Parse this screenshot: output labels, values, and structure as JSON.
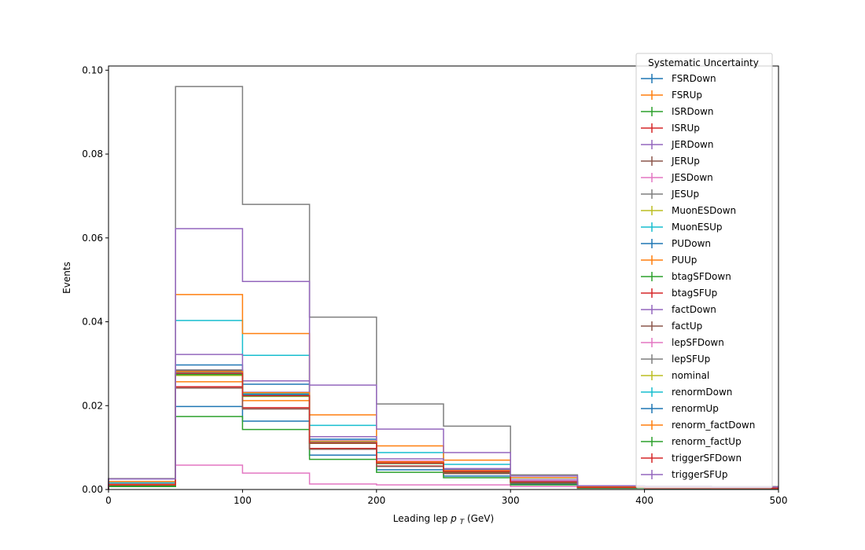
{
  "chart_data": {
    "type": "step-histogram",
    "xlabel": "Leading lep",
    "xlabel_math": "p",
    "xlabel_sub": "T",
    "xlabel_unit": "(GeV)",
    "ylabel": "Events",
    "xlim": [
      0,
      500
    ],
    "ylim": [
      0,
      0.101
    ],
    "xticks": [
      0,
      100,
      200,
      300,
      400,
      500
    ],
    "xtick_labels": [
      "0",
      "100",
      "200",
      "300",
      "400",
      "500"
    ],
    "yticks": [
      0,
      0.02,
      0.04,
      0.06,
      0.08,
      0.1
    ],
    "ytick_labels": [
      "0.00",
      "0.02",
      "0.04",
      "0.06",
      "0.08",
      "0.10"
    ],
    "bin_edges": [
      0,
      50,
      100,
      150,
      200,
      250,
      300,
      350,
      400,
      450,
      500
    ],
    "legend_title": "Systematic Uncertainty",
    "legend_position": "upper right",
    "series": [
      {
        "name": "FSRDown",
        "color": "#1f77b4",
        "values": [
          0.001,
          0.0297,
          0.0251,
          0.012,
          0.0068,
          0.0048,
          0.0018,
          0.0006,
          0.0004,
          0.0003
        ]
      },
      {
        "name": "FSRUp",
        "color": "#ff7f0e",
        "values": [
          0.0012,
          0.0257,
          0.0212,
          0.011,
          0.0063,
          0.0043,
          0.0017,
          0.0005,
          0.0003,
          0.0003
        ]
      },
      {
        "name": "ISRDown",
        "color": "#2ca02c",
        "values": [
          0.0009,
          0.0275,
          0.0225,
          0.0112,
          0.0062,
          0.0042,
          0.0017,
          0.0005,
          0.0003,
          0.0003
        ]
      },
      {
        "name": "ISRUp",
        "color": "#d62728",
        "values": [
          0.0011,
          0.028,
          0.023,
          0.0114,
          0.0064,
          0.0044,
          0.0018,
          0.0006,
          0.0004,
          0.0003
        ]
      },
      {
        "name": "JERDown",
        "color": "#9467bd",
        "values": [
          0.0012,
          0.0285,
          0.0232,
          0.0116,
          0.0066,
          0.0045,
          0.0018,
          0.0006,
          0.0004,
          0.0003
        ]
      },
      {
        "name": "JERUp",
        "color": "#8c564b",
        "values": [
          0.0012,
          0.0283,
          0.0228,
          0.0114,
          0.0065,
          0.0045,
          0.0018,
          0.0006,
          0.0004,
          0.0003
        ]
      },
      {
        "name": "JESDown",
        "color": "#e377c2",
        "values": [
          0.0009,
          0.0058,
          0.0039,
          0.0013,
          0.0011,
          0.0011,
          0.0007,
          0.0004,
          0.0003,
          0.0003
        ]
      },
      {
        "name": "JESUp",
        "color": "#7f7f7f",
        "values": [
          0.0014,
          0.0285,
          0.0229,
          0.0113,
          0.0065,
          0.0046,
          0.0019,
          0.0006,
          0.0004,
          0.0003
        ]
      },
      {
        "name": "MuonESDown",
        "color": "#bcbd22",
        "values": [
          0.0013,
          0.0272,
          0.0222,
          0.011,
          0.0063,
          0.0043,
          0.0018,
          0.0005,
          0.0003,
          0.0003
        ]
      },
      {
        "name": "MuonESUp",
        "color": "#17becf",
        "values": [
          0.0016,
          0.0403,
          0.032,
          0.0153,
          0.0088,
          0.006,
          0.0024,
          0.0007,
          0.0004,
          0.0004
        ]
      },
      {
        "name": "PUDown",
        "color": "#1f77b4",
        "values": [
          0.0008,
          0.0198,
          0.0163,
          0.0082,
          0.0047,
          0.0032,
          0.0013,
          0.0004,
          0.0002,
          0.0002
        ]
      },
      {
        "name": "PUUp",
        "color": "#ff7f0e",
        "values": [
          0.0019,
          0.0465,
          0.0372,
          0.0178,
          0.0104,
          0.007,
          0.0028,
          0.0008,
          0.0005,
          0.0004
        ]
      },
      {
        "name": "btagSFDown",
        "color": "#2ca02c",
        "values": [
          0.0007,
          0.0174,
          0.0143,
          0.0072,
          0.0041,
          0.0028,
          0.0011,
          0.0003,
          0.0002,
          0.0002
        ]
      },
      {
        "name": "btagSFUp",
        "color": "#d62728",
        "values": [
          0.001,
          0.0245,
          0.0195,
          0.0098,
          0.0056,
          0.0039,
          0.0016,
          0.0005,
          0.0003,
          0.0003
        ]
      },
      {
        "name": "factDown",
        "color": "#9467bd",
        "values": [
          0.0013,
          0.0322,
          0.0259,
          0.0126,
          0.0073,
          0.005,
          0.002,
          0.0006,
          0.0004,
          0.0003
        ]
      },
      {
        "name": "factUp",
        "color": "#8c564b",
        "values": [
          0.001,
          0.0242,
          0.0192,
          0.0096,
          0.0055,
          0.0038,
          0.0015,
          0.0005,
          0.0003,
          0.0003
        ]
      },
      {
        "name": "lepSFDown",
        "color": "#e377c2",
        "values": [
          0.0011,
          0.0276,
          0.0226,
          0.0111,
          0.0068,
          0.0046,
          0.0023,
          0.0006,
          0.0004,
          0.0003
        ]
      },
      {
        "name": "lepSFUp",
        "color": "#7f7f7f",
        "values": [
          0.0026,
          0.0961,
          0.068,
          0.0411,
          0.0204,
          0.0151,
          0.0035,
          0.0009,
          0.0008,
          0.0007
        ]
      },
      {
        "name": "nominal",
        "color": "#bcbd22",
        "values": [
          0.0011,
          0.0278,
          0.0227,
          0.0112,
          0.0064,
          0.0044,
          0.0018,
          0.0005,
          0.0003,
          0.0003
        ]
      },
      {
        "name": "renormDown",
        "color": "#17becf",
        "values": [
          0.0011,
          0.0279,
          0.0228,
          0.0113,
          0.0064,
          0.0044,
          0.0018,
          0.0005,
          0.0003,
          0.0003
        ]
      },
      {
        "name": "renormUp",
        "color": "#1f77b4",
        "values": [
          0.0011,
          0.0276,
          0.0226,
          0.0111,
          0.0063,
          0.0043,
          0.0018,
          0.0005,
          0.0003,
          0.0003
        ]
      },
      {
        "name": "renorm_factDown",
        "color": "#ff7f0e",
        "values": [
          0.0012,
          0.0281,
          0.0231,
          0.0115,
          0.0066,
          0.0045,
          0.0018,
          0.0006,
          0.0004,
          0.0003
        ]
      },
      {
        "name": "renorm_factUp",
        "color": "#2ca02c",
        "values": [
          0.001,
          0.0274,
          0.0223,
          0.011,
          0.0062,
          0.0042,
          0.0017,
          0.0005,
          0.0003,
          0.0003
        ]
      },
      {
        "name": "triggerSFDown",
        "color": "#d62728",
        "values": [
          0.0011,
          0.0277,
          0.0224,
          0.0111,
          0.0063,
          0.0043,
          0.0018,
          0.0005,
          0.0003,
          0.0003
        ]
      },
      {
        "name": "triggerSFUp",
        "color": "#9467bd",
        "values": [
          0.0025,
          0.0622,
          0.0496,
          0.0249,
          0.0144,
          0.0088,
          0.0032,
          0.0009,
          0.0007,
          0.0006
        ]
      }
    ]
  }
}
